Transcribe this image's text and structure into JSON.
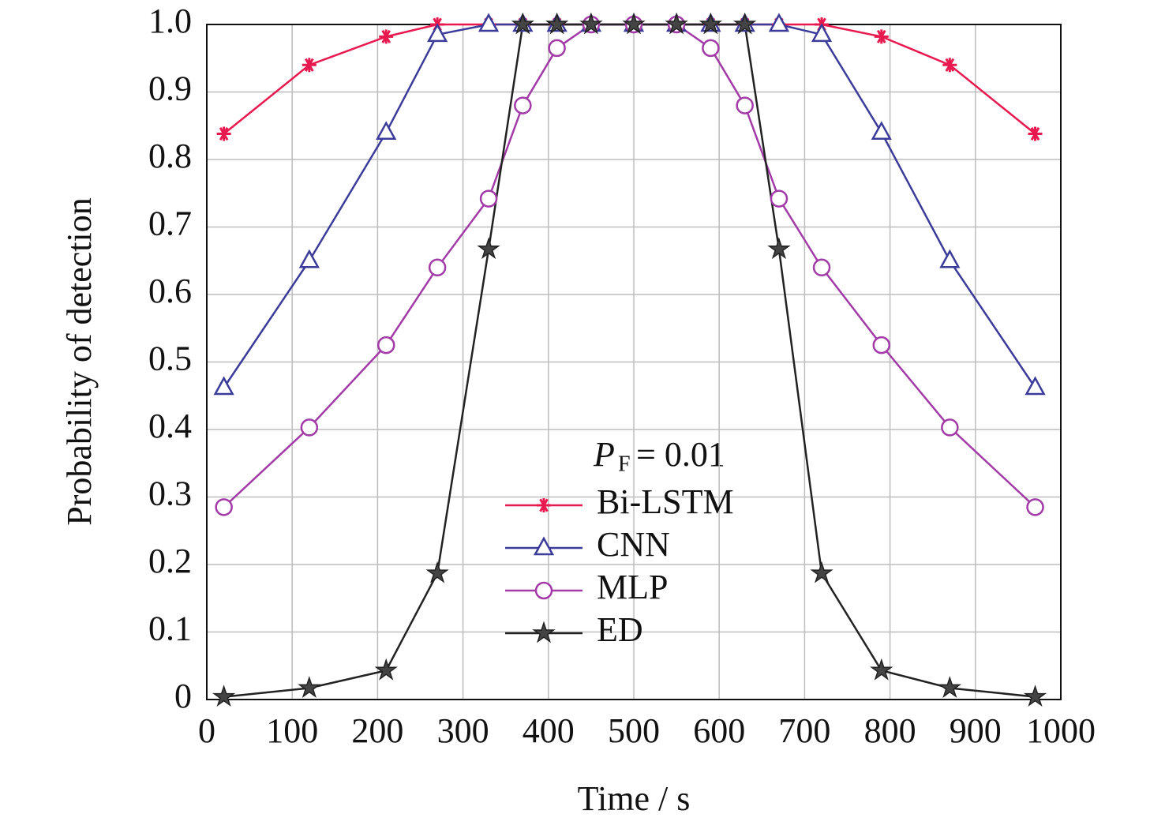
{
  "chart_data": {
    "type": "line",
    "xlabel": "Time / s",
    "ylabel": "Probability of detection",
    "legend_title": "P",
    "legend_title_sub": "F",
    "legend_title_value": "= 0.01",
    "x": [
      20,
      120,
      210,
      270,
      330,
      370,
      410,
      450,
      500,
      550,
      590,
      630,
      670,
      720,
      790,
      870,
      970
    ],
    "series": [
      {
        "name": "Bi-LSTM",
        "color": "#e8194f",
        "marker": "asterisk",
        "values": [
          0.838,
          0.94,
          0.982,
          1,
          1,
          1,
          1,
          1,
          1,
          1,
          1,
          1,
          1,
          1,
          0.982,
          0.94,
          0.838
        ]
      },
      {
        "name": "CNN",
        "color": "#3b3b9a",
        "marker": "triangle",
        "values": [
          0.462,
          0.65,
          0.84,
          0.985,
          1,
          1,
          1,
          1,
          1,
          1,
          1,
          1,
          1,
          0.985,
          0.84,
          0.65,
          0.462
        ]
      },
      {
        "name": "MLP",
        "color": "#a23aa8",
        "marker": "circle",
        "values": [
          0.285,
          0.403,
          0.525,
          0.64,
          0.742,
          0.88,
          0.965,
          1,
          1,
          1,
          0.965,
          0.88,
          0.742,
          0.64,
          0.525,
          0.403,
          0.285
        ]
      },
      {
        "name": "ED",
        "color": "#222222",
        "marker": "star",
        "values": [
          0.004,
          0.017,
          0.043,
          0.187,
          0.667,
          1,
          1,
          1,
          1,
          1,
          1,
          1,
          0.667,
          0.187,
          0.043,
          0.017,
          0.004
        ]
      }
    ],
    "xlim": [
      0,
      1000
    ],
    "xticks": [
      0,
      100,
      200,
      300,
      400,
      500,
      600,
      700,
      800,
      900,
      1000
    ],
    "ylim": [
      0,
      1
    ],
    "yticks": [
      0,
      0.1,
      0.2,
      0.3,
      0.4,
      0.5,
      0.6,
      0.7,
      0.8,
      0.9,
      {
        "value": 1,
        "label": "1.0"
      }
    ],
    "grid": true
  }
}
